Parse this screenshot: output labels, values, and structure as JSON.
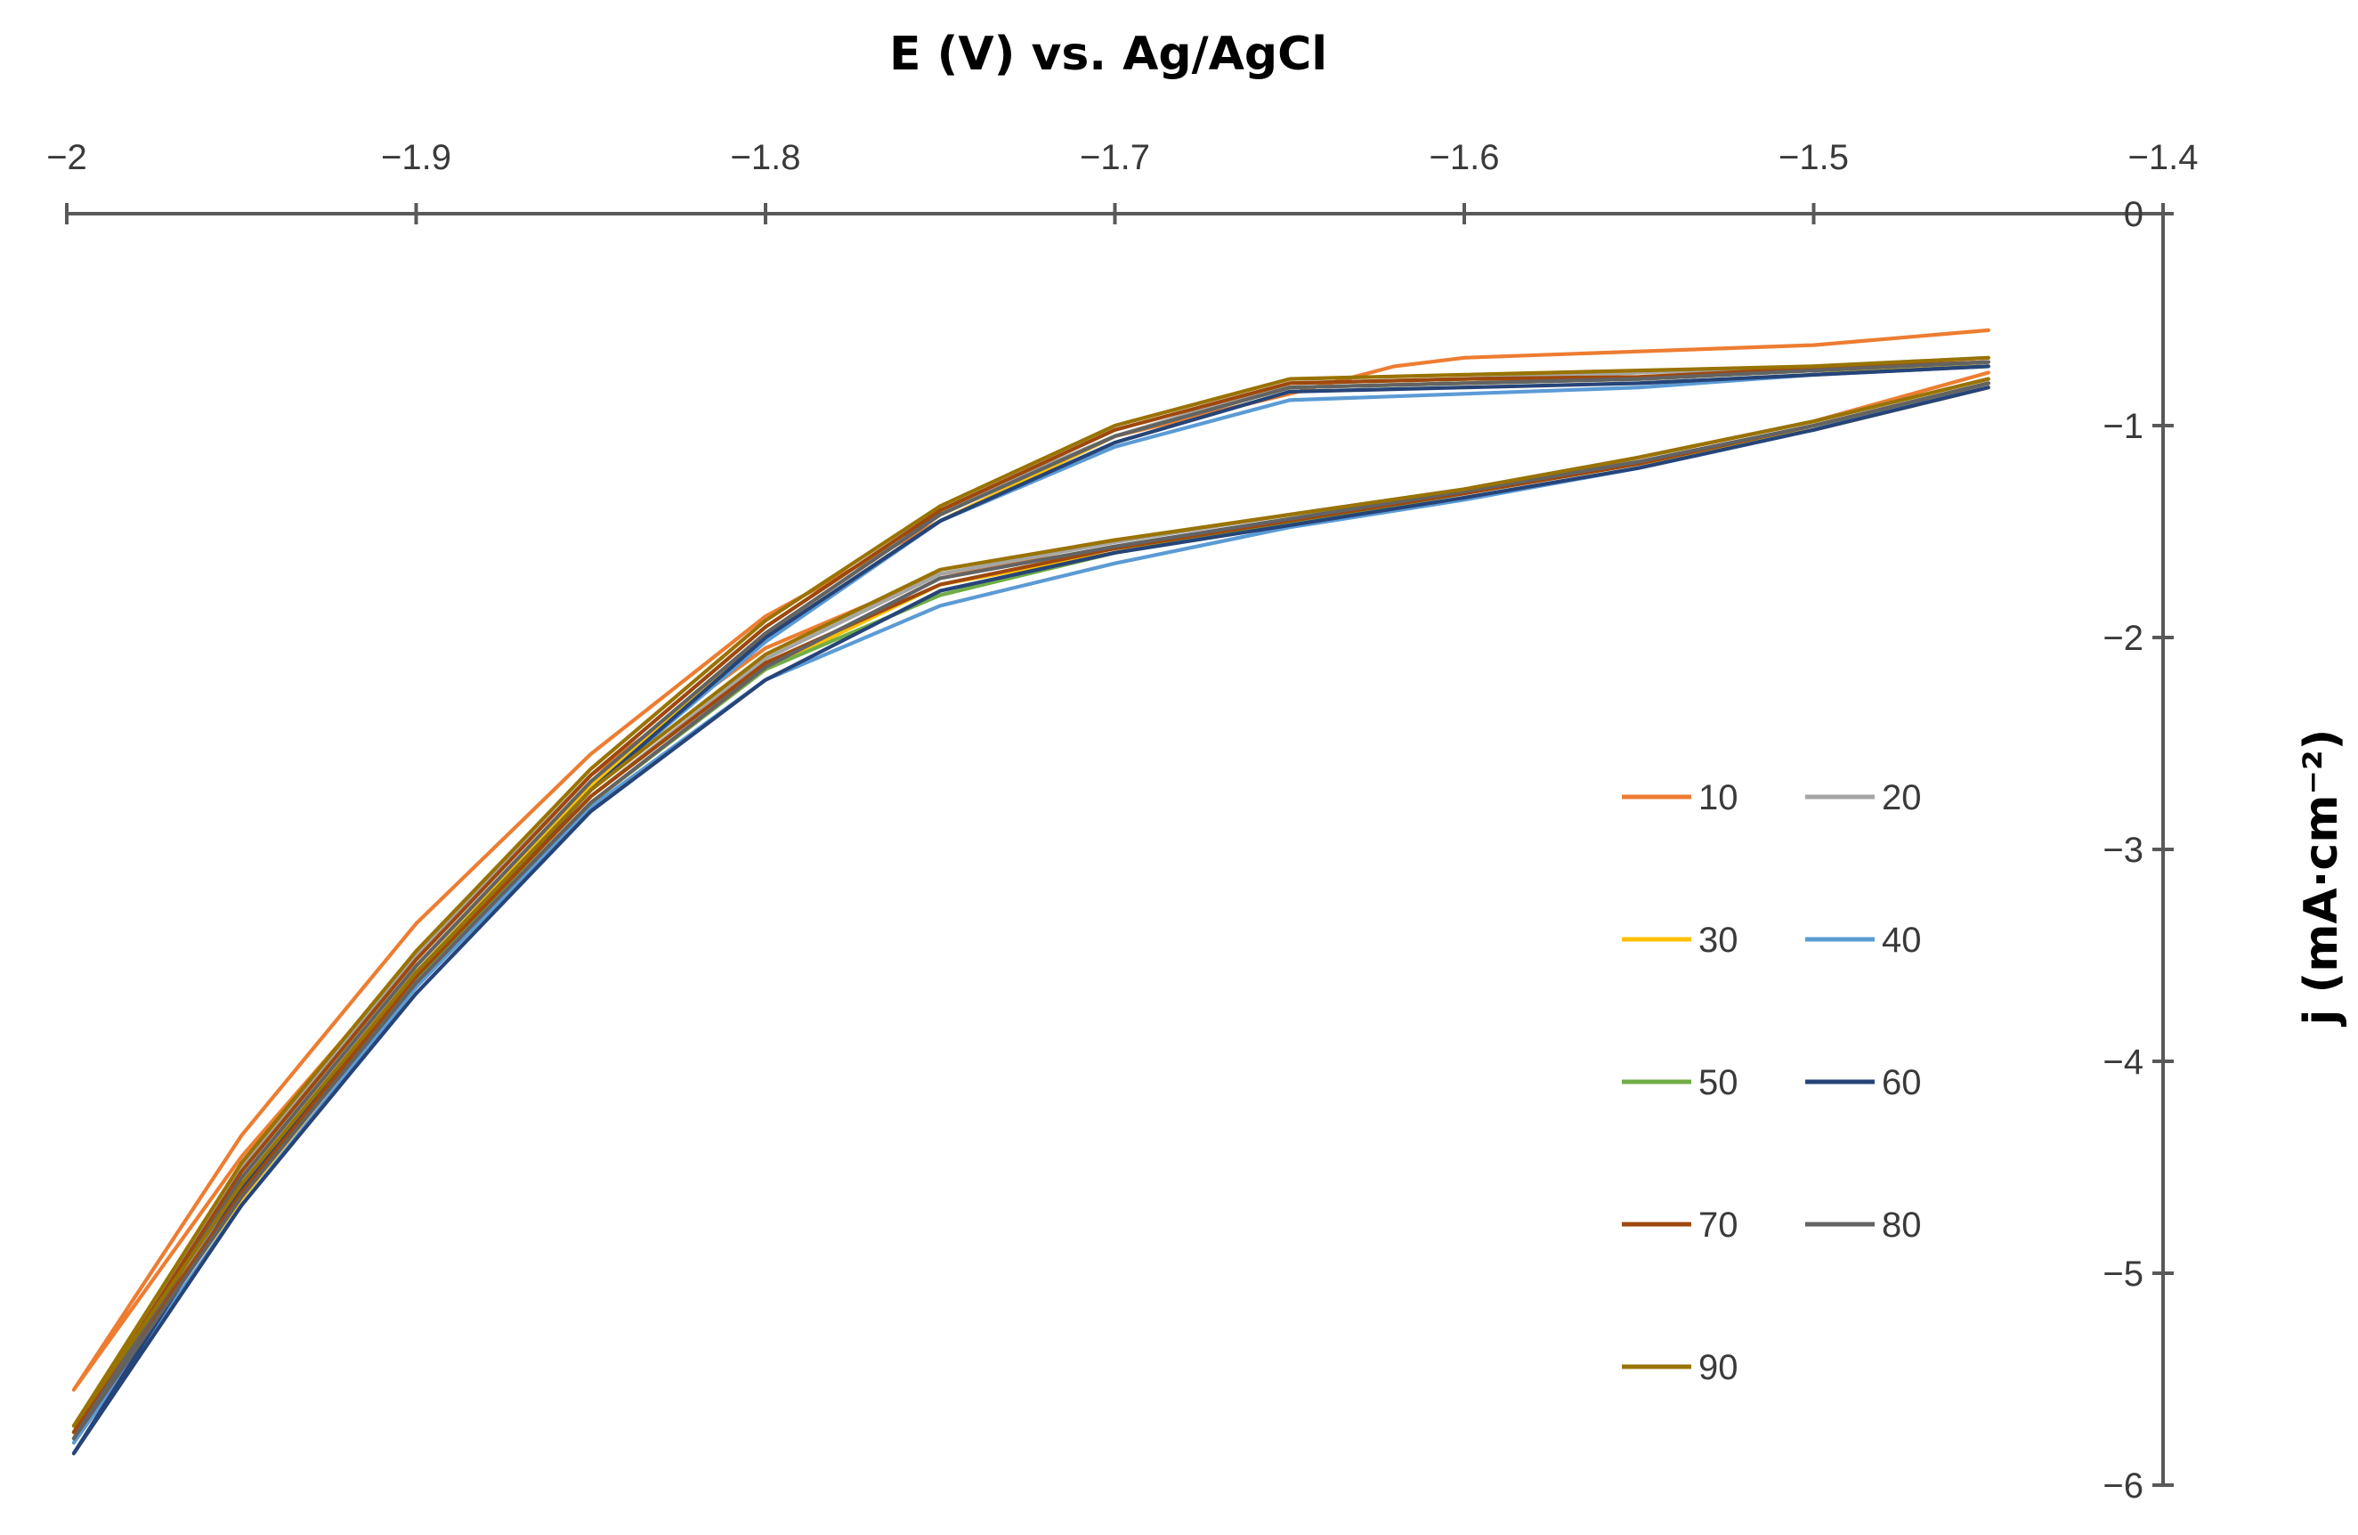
{
  "chart_data": {
    "type": "line",
    "title": "",
    "xlabel": "E (V) vs. Ag/AgCl",
    "ylabel": "j (mA·cm⁻²)",
    "xlim": [
      -2,
      -1.4
    ],
    "ylim": [
      -6,
      0
    ],
    "x_axis_position": "top",
    "y_axis_position": "right",
    "x_ticks": [
      -2,
      -1.9,
      -1.8,
      -1.7,
      -1.6,
      -1.5,
      -1.4
    ],
    "x_tick_labels": [
      "−2",
      "−1.9",
      "−1.8",
      "−1.7",
      "−1.6",
      "−1.5",
      "−1.4"
    ],
    "y_ticks": [
      0,
      -1,
      -2,
      -3,
      -4,
      -5,
      -6
    ],
    "y_tick_labels": [
      "0",
      "−1",
      "−2",
      "−3",
      "−4",
      "−5",
      "−6"
    ],
    "legend_position": "right",
    "series": [
      {
        "name": "10",
        "color": "#ED7D31",
        "upper": [
          [
            -1.45,
            -0.55
          ],
          [
            -1.5,
            -0.62
          ],
          [
            -1.55,
            -0.65
          ],
          [
            -1.6,
            -0.68
          ],
          [
            -1.62,
            -0.72
          ],
          [
            -1.65,
            -0.85
          ],
          [
            -1.7,
            -1.05
          ],
          [
            -1.75,
            -1.45
          ],
          [
            -1.8,
            -1.9
          ],
          [
            -1.85,
            -2.55
          ],
          [
            -1.9,
            -3.35
          ],
          [
            -1.95,
            -4.35
          ],
          [
            -1.998,
            -5.55
          ]
        ],
        "lower": [
          [
            -1.998,
            -5.55
          ],
          [
            -1.95,
            -4.45
          ],
          [
            -1.9,
            -3.5
          ],
          [
            -1.85,
            -2.65
          ],
          [
            -1.8,
            -2.05
          ],
          [
            -1.75,
            -1.7
          ],
          [
            -1.7,
            -1.58
          ],
          [
            -1.65,
            -1.45
          ],
          [
            -1.6,
            -1.32
          ],
          [
            -1.55,
            -1.15
          ],
          [
            -1.5,
            -0.98
          ],
          [
            -1.45,
            -0.75
          ]
        ]
      },
      {
        "name": "20",
        "color": "#A5A5A5",
        "upper": [
          [
            -1.45,
            -0.68
          ],
          [
            -1.5,
            -0.72
          ],
          [
            -1.55,
            -0.75
          ],
          [
            -1.6,
            -0.78
          ],
          [
            -1.65,
            -0.8
          ],
          [
            -1.7,
            -1.05
          ],
          [
            -1.75,
            -1.4
          ],
          [
            -1.8,
            -1.95
          ],
          [
            -1.85,
            -2.65
          ],
          [
            -1.9,
            -3.5
          ],
          [
            -1.95,
            -4.5
          ],
          [
            -1.998,
            -5.75
          ]
        ],
        "lower": [
          [
            -1.998,
            -5.75
          ],
          [
            -1.95,
            -4.6
          ],
          [
            -1.9,
            -3.6
          ],
          [
            -1.85,
            -2.75
          ],
          [
            -1.8,
            -2.1
          ],
          [
            -1.75,
            -1.7
          ],
          [
            -1.7,
            -1.55
          ],
          [
            -1.65,
            -1.42
          ],
          [
            -1.6,
            -1.3
          ],
          [
            -1.55,
            -1.15
          ],
          [
            -1.5,
            -0.98
          ],
          [
            -1.45,
            -0.78
          ]
        ]
      },
      {
        "name": "30",
        "color": "#FFC000",
        "upper": [
          [
            -1.45,
            -0.72
          ],
          [
            -1.5,
            -0.74
          ],
          [
            -1.55,
            -0.78
          ],
          [
            -1.6,
            -0.8
          ],
          [
            -1.65,
            -0.82
          ],
          [
            -1.7,
            -1.05
          ],
          [
            -1.75,
            -1.45
          ],
          [
            -1.8,
            -2.0
          ],
          [
            -1.85,
            -2.7
          ],
          [
            -1.9,
            -3.55
          ],
          [
            -1.95,
            -4.55
          ],
          [
            -1.998,
            -5.75
          ]
        ],
        "lower": [
          [
            -1.998,
            -5.75
          ],
          [
            -1.95,
            -4.65
          ],
          [
            -1.9,
            -3.62
          ],
          [
            -1.85,
            -2.78
          ],
          [
            -1.8,
            -2.15
          ],
          [
            -1.75,
            -1.75
          ],
          [
            -1.7,
            -1.6
          ],
          [
            -1.65,
            -1.45
          ],
          [
            -1.6,
            -1.32
          ],
          [
            -1.55,
            -1.18
          ],
          [
            -1.5,
            -1.02
          ],
          [
            -1.45,
            -0.82
          ]
        ]
      },
      {
        "name": "40",
        "color": "#5B9BD5",
        "upper": [
          [
            -1.45,
            -0.72
          ],
          [
            -1.5,
            -0.76
          ],
          [
            -1.55,
            -0.82
          ],
          [
            -1.6,
            -0.85
          ],
          [
            -1.65,
            -0.88
          ],
          [
            -1.7,
            -1.1
          ],
          [
            -1.75,
            -1.45
          ],
          [
            -1.8,
            -2.02
          ],
          [
            -1.85,
            -2.72
          ],
          [
            -1.9,
            -3.58
          ],
          [
            -1.95,
            -4.6
          ],
          [
            -1.998,
            -5.8
          ]
        ],
        "lower": [
          [
            -1.998,
            -5.8
          ],
          [
            -1.95,
            -4.68
          ],
          [
            -1.9,
            -3.65
          ],
          [
            -1.85,
            -2.8
          ],
          [
            -1.8,
            -2.2
          ],
          [
            -1.75,
            -1.85
          ],
          [
            -1.7,
            -1.65
          ],
          [
            -1.65,
            -1.48
          ],
          [
            -1.6,
            -1.35
          ],
          [
            -1.55,
            -1.2
          ],
          [
            -1.5,
            -1.02
          ],
          [
            -1.45,
            -0.8
          ]
        ]
      },
      {
        "name": "50",
        "color": "#70AD47",
        "upper": [
          [
            -1.45,
            -0.7
          ],
          [
            -1.5,
            -0.74
          ],
          [
            -1.55,
            -0.78
          ],
          [
            -1.6,
            -0.8
          ],
          [
            -1.65,
            -0.82
          ],
          [
            -1.7,
            -1.05
          ],
          [
            -1.75,
            -1.42
          ],
          [
            -1.8,
            -1.98
          ],
          [
            -1.85,
            -2.68
          ],
          [
            -1.9,
            -3.55
          ],
          [
            -1.95,
            -4.55
          ],
          [
            -1.998,
            -5.78
          ]
        ],
        "lower": [
          [
            -1.998,
            -5.78
          ],
          [
            -1.95,
            -4.62
          ],
          [
            -1.9,
            -3.62
          ],
          [
            -1.85,
            -2.78
          ],
          [
            -1.8,
            -2.15
          ],
          [
            -1.75,
            -1.8
          ],
          [
            -1.7,
            -1.6
          ],
          [
            -1.65,
            -1.46
          ],
          [
            -1.6,
            -1.32
          ],
          [
            -1.55,
            -1.18
          ],
          [
            -1.5,
            -1.0
          ],
          [
            -1.45,
            -0.8
          ]
        ]
      },
      {
        "name": "60",
        "color": "#264478",
        "upper": [
          [
            -1.45,
            -0.72
          ],
          [
            -1.5,
            -0.76
          ],
          [
            -1.55,
            -0.8
          ],
          [
            -1.6,
            -0.82
          ],
          [
            -1.65,
            -0.84
          ],
          [
            -1.7,
            -1.08
          ],
          [
            -1.75,
            -1.45
          ],
          [
            -1.8,
            -2.0
          ],
          [
            -1.85,
            -2.72
          ],
          [
            -1.9,
            -3.6
          ],
          [
            -1.95,
            -4.6
          ],
          [
            -1.998,
            -5.85
          ]
        ],
        "lower": [
          [
            -1.998,
            -5.85
          ],
          [
            -1.95,
            -4.68
          ],
          [
            -1.9,
            -3.68
          ],
          [
            -1.85,
            -2.82
          ],
          [
            -1.8,
            -2.2
          ],
          [
            -1.75,
            -1.78
          ],
          [
            -1.7,
            -1.6
          ],
          [
            -1.65,
            -1.47
          ],
          [
            -1.6,
            -1.34
          ],
          [
            -1.55,
            -1.2
          ],
          [
            -1.5,
            -1.02
          ],
          [
            -1.45,
            -0.82
          ]
        ]
      },
      {
        "name": "70",
        "color": "#9E480E",
        "upper": [
          [
            -1.45,
            -0.7
          ],
          [
            -1.5,
            -0.73
          ],
          [
            -1.55,
            -0.77
          ],
          [
            -1.6,
            -0.78
          ],
          [
            -1.65,
            -0.8
          ],
          [
            -1.7,
            -1.02
          ],
          [
            -1.75,
            -1.4
          ],
          [
            -1.8,
            -1.95
          ],
          [
            -1.85,
            -2.65
          ],
          [
            -1.9,
            -3.52
          ],
          [
            -1.95,
            -4.52
          ],
          [
            -1.998,
            -5.75
          ]
        ],
        "lower": [
          [
            -1.998,
            -5.75
          ],
          [
            -1.95,
            -4.62
          ],
          [
            -1.9,
            -3.6
          ],
          [
            -1.85,
            -2.75
          ],
          [
            -1.8,
            -2.12
          ],
          [
            -1.75,
            -1.75
          ],
          [
            -1.7,
            -1.58
          ],
          [
            -1.65,
            -1.45
          ],
          [
            -1.6,
            -1.32
          ],
          [
            -1.55,
            -1.18
          ],
          [
            -1.5,
            -1.0
          ],
          [
            -1.45,
            -0.8
          ]
        ]
      },
      {
        "name": "80",
        "color": "#636363",
        "upper": [
          [
            -1.45,
            -0.7
          ],
          [
            -1.5,
            -0.74
          ],
          [
            -1.55,
            -0.78
          ],
          [
            -1.6,
            -0.8
          ],
          [
            -1.65,
            -0.82
          ],
          [
            -1.7,
            -1.05
          ],
          [
            -1.75,
            -1.42
          ],
          [
            -1.8,
            -1.98
          ],
          [
            -1.85,
            -2.68
          ],
          [
            -1.9,
            -3.55
          ],
          [
            -1.95,
            -4.55
          ],
          [
            -1.998,
            -5.78
          ]
        ],
        "lower": [
          [
            -1.998,
            -5.78
          ],
          [
            -1.95,
            -4.64
          ],
          [
            -1.9,
            -3.63
          ],
          [
            -1.85,
            -2.78
          ],
          [
            -1.8,
            -2.14
          ],
          [
            -1.75,
            -1.72
          ],
          [
            -1.7,
            -1.57
          ],
          [
            -1.65,
            -1.44
          ],
          [
            -1.6,
            -1.31
          ],
          [
            -1.55,
            -1.17
          ],
          [
            -1.5,
            -1.0
          ],
          [
            -1.45,
            -0.8
          ]
        ]
      },
      {
        "name": "90",
        "color": "#997300",
        "upper": [
          [
            -1.45,
            -0.68
          ],
          [
            -1.5,
            -0.72
          ],
          [
            -1.55,
            -0.74
          ],
          [
            -1.6,
            -0.76
          ],
          [
            -1.65,
            -0.78
          ],
          [
            -1.7,
            -1.0
          ],
          [
            -1.75,
            -1.38
          ],
          [
            -1.8,
            -1.92
          ],
          [
            -1.85,
            -2.62
          ],
          [
            -1.9,
            -3.48
          ],
          [
            -1.95,
            -4.48
          ],
          [
            -1.998,
            -5.72
          ]
        ],
        "lower": [
          [
            -1.998,
            -5.72
          ],
          [
            -1.95,
            -4.58
          ],
          [
            -1.9,
            -3.58
          ],
          [
            -1.85,
            -2.72
          ],
          [
            -1.8,
            -2.08
          ],
          [
            -1.75,
            -1.68
          ],
          [
            -1.7,
            -1.54
          ],
          [
            -1.65,
            -1.42
          ],
          [
            -1.6,
            -1.3
          ],
          [
            -1.55,
            -1.15
          ],
          [
            -1.5,
            -0.98
          ],
          [
            -1.45,
            -0.78
          ]
        ]
      }
    ]
  }
}
